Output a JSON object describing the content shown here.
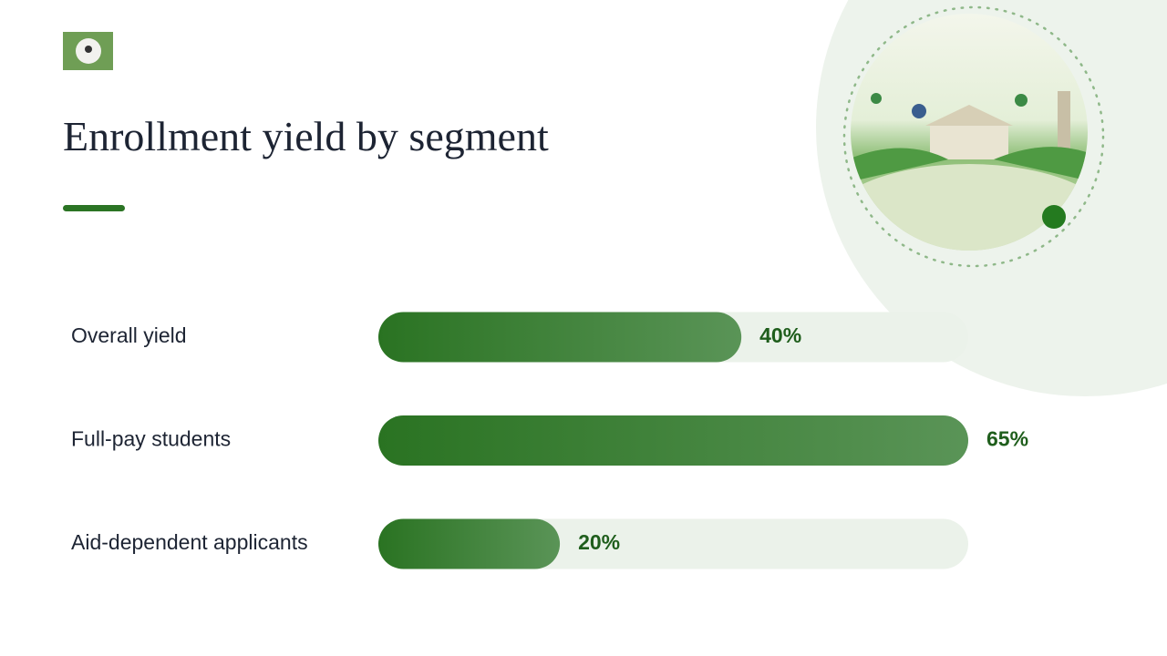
{
  "chart_data": {
    "type": "bar",
    "orientation": "horizontal",
    "title": "Enrollment yield by segment",
    "categories": [
      "Overall yield",
      "Full-pay students",
      "Aid-dependent applicants"
    ],
    "values": [
      40,
      65,
      20
    ],
    "value_labels": [
      "40%",
      "65%",
      "20%"
    ],
    "color": "#2b7424"
  }
}
